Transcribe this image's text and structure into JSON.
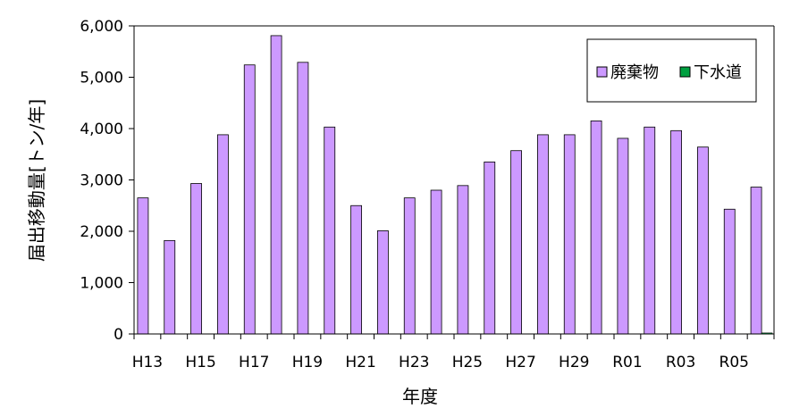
{
  "chart_data": {
    "type": "bar",
    "xlabel": "年度",
    "ylabel": "届出移動量[トン/年]",
    "ylim": [
      0,
      6000
    ],
    "yticks": [
      "0",
      "1,000",
      "2,000",
      "3,000",
      "4,000",
      "5,000",
      "6,000"
    ],
    "grid": false,
    "legend_position": "top-right",
    "categories": [
      "H13",
      "H14",
      "H15",
      "H16",
      "H17",
      "H18",
      "H19",
      "H20",
      "H21",
      "H22",
      "H23",
      "H24",
      "H25",
      "H26",
      "H27",
      "H28",
      "H29",
      "H30",
      "R01",
      "R02",
      "R03",
      "R04",
      "R05",
      "R06"
    ],
    "x_tick_labels": [
      "H13",
      "",
      "H15",
      "",
      "H17",
      "",
      "H19",
      "",
      "H21",
      "",
      "H23",
      "",
      "H25",
      "",
      "H27",
      "",
      "H29",
      "",
      "R01",
      "",
      "R03",
      "",
      "R05",
      ""
    ],
    "series": [
      {
        "name": "廃棄物",
        "color": "#cc99ff",
        "values": [
          2650,
          1820,
          2930,
          3880,
          5240,
          5810,
          5290,
          4030,
          2500,
          2010,
          2650,
          2800,
          2890,
          3350,
          3570,
          3880,
          3880,
          4150,
          3810,
          4030,
          3960,
          3640,
          2430,
          2860
        ]
      },
      {
        "name": "下水道",
        "color": "#00a040",
        "values": [
          0,
          0,
          0,
          0,
          0,
          0,
          0,
          0,
          0,
          0,
          0,
          0,
          0,
          0,
          0,
          0,
          0,
          0,
          0,
          0,
          0,
          0,
          0,
          20
        ]
      }
    ]
  }
}
